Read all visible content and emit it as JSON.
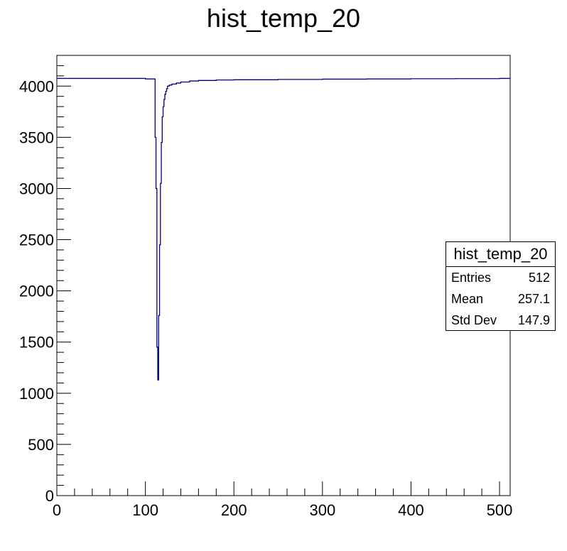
{
  "colors": {
    "line": "#000080",
    "axis": "#000000",
    "background": "#ffffff"
  },
  "stats": {
    "title": "hist_temp_20",
    "rows": [
      {
        "label": "Entries",
        "value": "512"
      },
      {
        "label": "Mean",
        "value": "257.1"
      },
      {
        "label": "Std Dev",
        "value": "147.9"
      }
    ]
  },
  "chart_data": {
    "type": "line",
    "title": "hist_temp_20",
    "xlabel": "",
    "ylabel": "",
    "xlim": [
      0,
      512
    ],
    "ylim": [
      0,
      4300
    ],
    "xticks": [
      "0",
      "100",
      "200",
      "300",
      "400",
      "500"
    ],
    "yticks": [
      "0",
      "500",
      "1000",
      "1500",
      "2000",
      "2500",
      "3000",
      "3500",
      "4000"
    ],
    "grid": false,
    "series": [
      {
        "x": [
          0,
          80,
          100,
          110,
          111,
          112,
          113,
          114,
          115,
          116,
          117,
          118,
          119,
          120,
          121,
          122,
          123,
          124,
          125,
          127,
          130,
          135,
          140,
          150,
          160,
          180,
          200,
          250,
          300,
          350,
          400,
          450,
          500,
          512
        ],
        "values": [
          4075,
          4075,
          4070,
          4070,
          3500,
          3000,
          1450,
          1130,
          1760,
          2450,
          3050,
          3450,
          3700,
          3800,
          3870,
          3920,
          3950,
          3975,
          4000,
          4010,
          4020,
          4030,
          4040,
          4050,
          4055,
          4060,
          4062,
          4065,
          4068,
          4070,
          4072,
          4073,
          4075,
          4075
        ]
      }
    ]
  }
}
